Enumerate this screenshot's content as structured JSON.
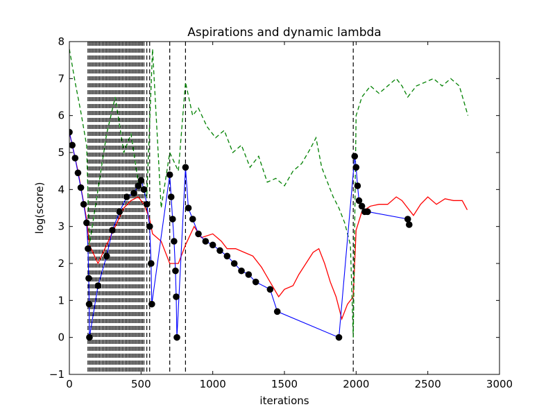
{
  "chart_data": {
    "type": "line",
    "title": "Aspirations and dynamic lambda",
    "xlabel": "iterations",
    "ylabel": "log(score)",
    "xlim": [
      0,
      3000
    ],
    "ylim": [
      -1,
      8
    ],
    "xticks": [
      "0",
      "500",
      "1000",
      "1500",
      "2000",
      "2500",
      "3000"
    ],
    "yticks": [
      "−1",
      "0",
      "1",
      "2",
      "3",
      "4",
      "5",
      "6",
      "7",
      "8"
    ],
    "grid": false,
    "legend": "none",
    "colors": {
      "current_score": "#0000ff",
      "aspiration": "#ff0000",
      "lambda": "#008000",
      "best_points": "#000000",
      "restarts": "#000000"
    },
    "restart_markers_x": [
      130,
      140,
      150,
      160,
      170,
      180,
      190,
      200,
      210,
      220,
      230,
      240,
      250,
      260,
      270,
      280,
      290,
      300,
      310,
      320,
      330,
      340,
      350,
      360,
      370,
      380,
      390,
      400,
      410,
      420,
      430,
      440,
      450,
      460,
      470,
      480,
      490,
      500,
      510,
      520,
      540,
      560,
      700,
      810,
      1980
    ],
    "best_points": [
      [
        0,
        5.55
      ],
      [
        20,
        5.2
      ],
      [
        40,
        4.85
      ],
      [
        60,
        4.45
      ],
      [
        80,
        4.05
      ],
      [
        100,
        3.6
      ],
      [
        120,
        3.1
      ],
      [
        130,
        2.4
      ],
      [
        135,
        1.6
      ],
      [
        138,
        0.9
      ],
      [
        140,
        0.0
      ],
      [
        200,
        1.4
      ],
      [
        260,
        2.2
      ],
      [
        300,
        2.9
      ],
      [
        350,
        3.4
      ],
      [
        400,
        3.8
      ],
      [
        450,
        3.9
      ],
      [
        480,
        4.1
      ],
      [
        500,
        4.25
      ],
      [
        520,
        4.0
      ],
      [
        540,
        3.6
      ],
      [
        560,
        3.0
      ],
      [
        570,
        2.0
      ],
      [
        575,
        0.9
      ],
      [
        700,
        4.4
      ],
      [
        710,
        3.8
      ],
      [
        720,
        3.2
      ],
      [
        730,
        2.6
      ],
      [
        740,
        1.8
      ],
      [
        745,
        1.1
      ],
      [
        750,
        0.0
      ],
      [
        810,
        4.6
      ],
      [
        830,
        3.5
      ],
      [
        860,
        3.2
      ],
      [
        900,
        2.8
      ],
      [
        950,
        2.6
      ],
      [
        1000,
        2.5
      ],
      [
        1050,
        2.35
      ],
      [
        1100,
        2.2
      ],
      [
        1150,
        2.0
      ],
      [
        1200,
        1.8
      ],
      [
        1250,
        1.7
      ],
      [
        1300,
        1.5
      ],
      [
        1400,
        1.3
      ],
      [
        1450,
        0.7
      ],
      [
        1880,
        0.0
      ],
      [
        1990,
        4.9
      ],
      [
        2000,
        4.6
      ],
      [
        2010,
        4.1
      ],
      [
        2020,
        3.7
      ],
      [
        2040,
        3.55
      ],
      [
        2060,
        3.4
      ],
      [
        2080,
        3.4
      ],
      [
        2360,
        3.2
      ],
      [
        2370,
        3.05
      ]
    ],
    "series": [
      {
        "values": [
          [
            0,
            5.55
          ],
          [
            60,
            4.5
          ],
          [
            120,
            3.2
          ],
          [
            140,
            2.5
          ],
          [
            200,
            2.0
          ],
          [
            260,
            2.5
          ],
          [
            320,
            3.0
          ],
          [
            380,
            3.5
          ],
          [
            430,
            3.7
          ],
          [
            480,
            3.8
          ],
          [
            520,
            3.6
          ],
          [
            560,
            3.2
          ],
          [
            580,
            2.8
          ],
          [
            640,
            2.6
          ],
          [
            700,
            2.0
          ],
          [
            760,
            2.0
          ],
          [
            810,
            2.5
          ],
          [
            870,
            3.0
          ],
          [
            920,
            2.7
          ],
          [
            1000,
            2.8
          ],
          [
            1060,
            2.6
          ],
          [
            1100,
            2.4
          ],
          [
            1160,
            2.4
          ],
          [
            1220,
            2.3
          ],
          [
            1280,
            2.2
          ],
          [
            1340,
            1.9
          ],
          [
            1400,
            1.5
          ],
          [
            1460,
            1.1
          ],
          [
            1500,
            1.3
          ],
          [
            1560,
            1.4
          ],
          [
            1600,
            1.7
          ],
          [
            1650,
            2.0
          ],
          [
            1700,
            2.3
          ],
          [
            1740,
            2.4
          ],
          [
            1780,
            2.0
          ],
          [
            1820,
            1.5
          ],
          [
            1860,
            1.1
          ],
          [
            1900,
            0.5
          ],
          [
            1940,
            0.9
          ],
          [
            1980,
            1.1
          ],
          [
            2000,
            2.9
          ],
          [
            2040,
            3.4
          ],
          [
            2100,
            3.55
          ],
          [
            2160,
            3.6
          ],
          [
            2220,
            3.6
          ],
          [
            2280,
            3.8
          ],
          [
            2320,
            3.7
          ],
          [
            2360,
            3.5
          ],
          [
            2400,
            3.3
          ],
          [
            2450,
            3.6
          ],
          [
            2500,
            3.8
          ],
          [
            2560,
            3.6
          ],
          [
            2620,
            3.75
          ],
          [
            2680,
            3.7
          ],
          [
            2740,
            3.7
          ],
          [
            2775,
            3.45
          ]
        ]
      },
      {
        "values": [
          [
            0,
            7.8
          ],
          [
            40,
            6.9
          ],
          [
            80,
            6.1
          ],
          [
            120,
            5.2
          ],
          [
            140,
            2.5
          ],
          [
            200,
            4.0
          ],
          [
            260,
            5.5
          ],
          [
            320,
            6.5
          ],
          [
            380,
            5.0
          ],
          [
            430,
            5.5
          ],
          [
            480,
            4.2
          ],
          [
            540,
            3.8
          ],
          [
            580,
            7.8
          ],
          [
            640,
            3.5
          ],
          [
            700,
            5.0
          ],
          [
            760,
            4.5
          ],
          [
            810,
            6.9
          ],
          [
            860,
            6.0
          ],
          [
            900,
            6.2
          ],
          [
            960,
            5.7
          ],
          [
            1020,
            5.4
          ],
          [
            1080,
            5.6
          ],
          [
            1140,
            5.0
          ],
          [
            1200,
            5.2
          ],
          [
            1260,
            4.6
          ],
          [
            1320,
            4.9
          ],
          [
            1380,
            4.2
          ],
          [
            1440,
            4.3
          ],
          [
            1500,
            4.1
          ],
          [
            1560,
            4.5
          ],
          [
            1620,
            4.7
          ],
          [
            1680,
            5.1
          ],
          [
            1720,
            5.4
          ],
          [
            1760,
            4.6
          ],
          [
            1800,
            4.2
          ],
          [
            1840,
            3.8
          ],
          [
            1880,
            3.5
          ],
          [
            1920,
            3.1
          ],
          [
            1960,
            2.5
          ],
          [
            1980,
            0.0
          ],
          [
            2000,
            6.0
          ],
          [
            2040,
            6.5
          ],
          [
            2100,
            6.8
          ],
          [
            2160,
            6.6
          ],
          [
            2220,
            6.8
          ],
          [
            2280,
            7.0
          ],
          [
            2320,
            6.8
          ],
          [
            2360,
            6.5
          ],
          [
            2420,
            6.8
          ],
          [
            2480,
            6.9
          ],
          [
            2540,
            7.0
          ],
          [
            2600,
            6.8
          ],
          [
            2660,
            7.0
          ],
          [
            2720,
            6.8
          ],
          [
            2780,
            6.0
          ]
        ]
      }
    ]
  }
}
